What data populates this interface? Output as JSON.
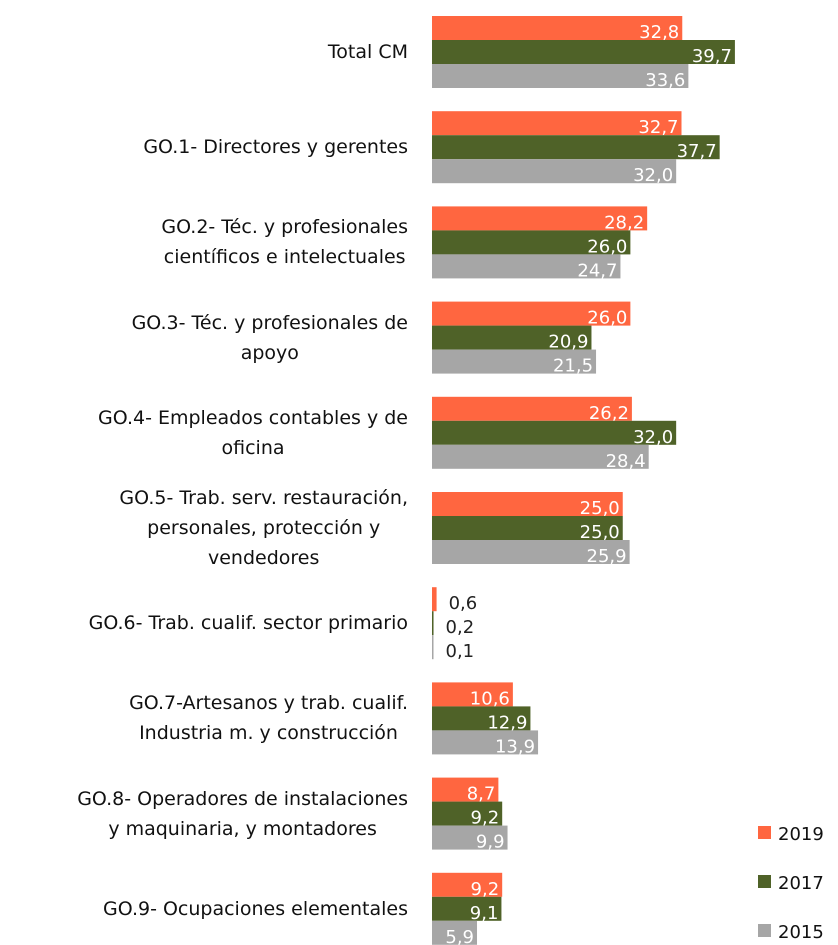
{
  "chart_data": {
    "type": "bar",
    "orientation": "horizontal",
    "categories": [
      "Total CM",
      "GO.1- Directores y gerentes",
      "GO.2- Téc. y profesionales\ncientíficos e  intelectuales",
      "GO.3- Téc. y profesionales de\napoyo",
      "GO.4- Empleados contables y de\noficina",
      "GO.5- Trab. serv. restauración,\npersonales,  protección y\nvendedores",
      "GO.6- Trab. cualif. sector primario",
      "GO.7-Artesanos y trab. cualif.\nIndustria m. y  construcción",
      "GO.8- Operadores de instalaciones\ny maquinaria, y  montadores",
      "GO.9- Ocupaciones elementales"
    ],
    "series": [
      {
        "name": "2019",
        "color": "#ff6640",
        "values": [
          32.8,
          32.7,
          28.2,
          26.0,
          26.2,
          25.0,
          0.6,
          10.6,
          8.7,
          9.2
        ],
        "value_labels": [
          "32,8",
          "32,7",
          "28,2",
          "26,0",
          "26,2",
          "25,0",
          "0,6",
          "10,6",
          "8,7",
          "9,2"
        ]
      },
      {
        "name": "2017",
        "color": "#4f6228",
        "values": [
          39.7,
          37.7,
          26.0,
          20.9,
          32.0,
          25.0,
          0.2,
          12.9,
          9.2,
          9.1
        ],
        "value_labels": [
          "39,7",
          "37,7",
          "26,0",
          "20,9",
          "32,0",
          "25,0",
          "0,2",
          "12,9",
          "9,2",
          "9,1"
        ]
      },
      {
        "name": "2015",
        "color": "#a6a6a6",
        "values": [
          33.6,
          32.0,
          24.7,
          21.5,
          28.4,
          25.9,
          0.1,
          13.9,
          9.9,
          5.9
        ],
        "value_labels": [
          "33,6",
          "32,0",
          "24,7",
          "21,5",
          "28,4",
          "25,9",
          "0,1",
          "13,9",
          "9,9",
          "5,9"
        ]
      }
    ],
    "legend": "bottom-right"
  }
}
